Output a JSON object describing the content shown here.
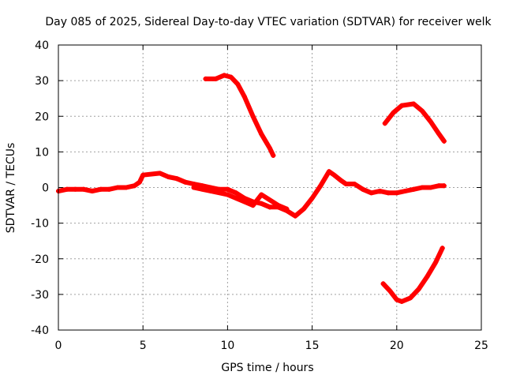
{
  "chart_data": {
    "type": "scatter",
    "title": "Day 085 of 2025, Sidereal Day-to-day VTEC variation (SDTVAR) for receiver welk",
    "xlabel": "GPS time / hours",
    "ylabel": "SDTVAR / TECUs",
    "xlim": [
      0,
      25
    ],
    "ylim": [
      -40,
      40
    ],
    "xticks": [
      0,
      5,
      10,
      15,
      20,
      25
    ],
    "yticks": [
      -40,
      -30,
      -20,
      -10,
      0,
      10,
      20,
      30,
      40
    ],
    "grid": true,
    "color": "#ff0000",
    "series": [
      {
        "name": "trace-main",
        "x": [
          0,
          0.5,
          1,
          1.5,
          2,
          2.5,
          3,
          3.5,
          4,
          4.5,
          4.8,
          5.0,
          6.0,
          6.5,
          7,
          7.5,
          8,
          8.5,
          9,
          9.5,
          10,
          10.5,
          11,
          11.5,
          12,
          12.5,
          13,
          13.5,
          14,
          14.5,
          15,
          15.5,
          16,
          16.3,
          16.7,
          17,
          17.5,
          18,
          18.5,
          19,
          19.5,
          20,
          20.5,
          21,
          21.5,
          22,
          22.5,
          22.8
        ],
        "y": [
          -1,
          -0.5,
          -0.5,
          -0.5,
          -1,
          -0.5,
          -0.5,
          0,
          0,
          0.5,
          1.5,
          3.5,
          4,
          3,
          2.5,
          1.5,
          1,
          0.5,
          0,
          -0.5,
          -0.5,
          -1.5,
          -3,
          -4,
          -4.5,
          -5.5,
          -5.5,
          -6.5,
          -8,
          -6,
          -3,
          0.5,
          4.5,
          3.5,
          2,
          1,
          1,
          -0.5,
          -1.5,
          -1,
          -1.5,
          -1.5,
          -1,
          -0.5,
          0,
          0,
          0.5,
          0.5
        ]
      },
      {
        "name": "trace-lower-branch",
        "x": [
          8,
          9,
          10,
          10.5,
          11,
          11.5,
          12,
          13,
          13.5
        ],
        "y": [
          0,
          -1,
          -2,
          -3,
          -4,
          -5,
          -2,
          -5,
          -6
        ]
      },
      {
        "name": "arc-upper-1",
        "x": [
          8.7,
          9.3,
          9.8,
          10.2,
          10.6,
          11,
          11.5,
          12,
          12.5,
          12.7
        ],
        "y": [
          30.5,
          30.5,
          31.5,
          31,
          29,
          25.5,
          20,
          15,
          11,
          9
        ]
      },
      {
        "name": "arc-upper-2",
        "x": [
          19.3,
          19.8,
          20.3,
          21,
          21.5,
          22,
          22.5,
          22.8
        ],
        "y": [
          18,
          21,
          23,
          23.5,
          21.5,
          18.5,
          15,
          13
        ]
      },
      {
        "name": "arc-lower",
        "x": [
          19.2,
          19.6,
          20,
          20.3,
          20.8,
          21.3,
          21.8,
          22.3,
          22.7
        ],
        "y": [
          -27,
          -29,
          -31.5,
          -32,
          -31,
          -28.5,
          -25,
          -21,
          -17
        ]
      }
    ]
  }
}
